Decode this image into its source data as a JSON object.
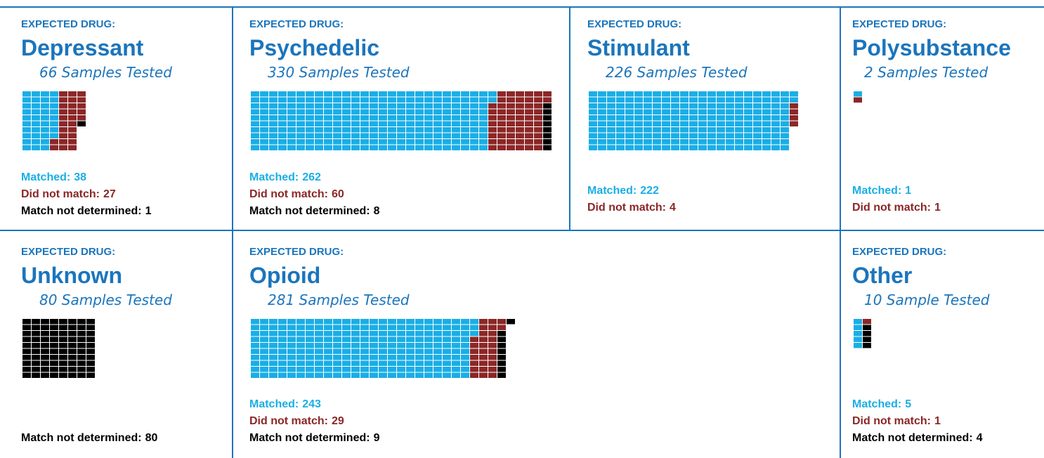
{
  "chart_data": [
    {
      "type": "waffle",
      "label": "EXPECTED DRUG:",
      "title": "Depressant",
      "subtitle": "66 Samples Tested",
      "series": [
        {
          "name": "Matched:",
          "color": "#1aaee6",
          "value": 38
        },
        {
          "name": "Did not match:",
          "color": "#8c2727",
          "value": 27
        },
        {
          "name": "Match not determined:",
          "color": "#000000",
          "value": 1
        }
      ]
    },
    {
      "type": "waffle",
      "label": "EXPECTED DRUG:",
      "title": "Psychedelic",
      "subtitle": "330 Samples Tested",
      "series": [
        {
          "name": "Matched:",
          "color": "#1aaee6",
          "value": 262
        },
        {
          "name": "Did not match:",
          "color": "#8c2727",
          "value": 60
        },
        {
          "name": "Match not determined:",
          "color": "#000000",
          "value": 8
        }
      ]
    },
    {
      "type": "waffle",
      "label": "EXPECTED DRUG:",
      "title": "Stimulant",
      "subtitle": "226 Samples Tested",
      "series": [
        {
          "name": "Matched:",
          "color": "#1aaee6",
          "value": 222
        },
        {
          "name": "Did not match:",
          "color": "#8c2727",
          "value": 4
        }
      ]
    },
    {
      "type": "waffle",
      "label": "EXPECTED DRUG:",
      "title": "Polysubstance",
      "subtitle": "2 Samples Tested",
      "series": [
        {
          "name": "Matched:",
          "color": "#1aaee6",
          "value": 1
        },
        {
          "name": "Did not match:",
          "color": "#8c2727",
          "value": 1
        }
      ]
    },
    {
      "type": "waffle",
      "label": "EXPECTED DRUG:",
      "title": "Unknown",
      "subtitle": "80 Samples Tested",
      "series": [
        {
          "name": "Match not determined:",
          "color": "#000000",
          "value": 80
        }
      ]
    },
    {
      "type": "waffle",
      "label": "EXPECTED DRUG:",
      "title": "Opioid",
      "subtitle": "281 Samples Tested",
      "series": [
        {
          "name": "Matched:",
          "color": "#1aaee6",
          "value": 243
        },
        {
          "name": "Did not match:",
          "color": "#8c2727",
          "value": 29
        },
        {
          "name": "Match not determined:",
          "color": "#000000",
          "value": 9
        }
      ]
    },
    {
      "type": "waffle",
      "label": "EXPECTED DRUG:",
      "title": "Other",
      "subtitle": "10 Sample Tested",
      "series": [
        {
          "name": "Matched:",
          "color": "#1aaee6",
          "value": 5
        },
        {
          "name": "Did not match:",
          "color": "#8c2727",
          "value": 1
        },
        {
          "name": "Match not determined:",
          "color": "#000000",
          "value": 4
        }
      ]
    }
  ]
}
